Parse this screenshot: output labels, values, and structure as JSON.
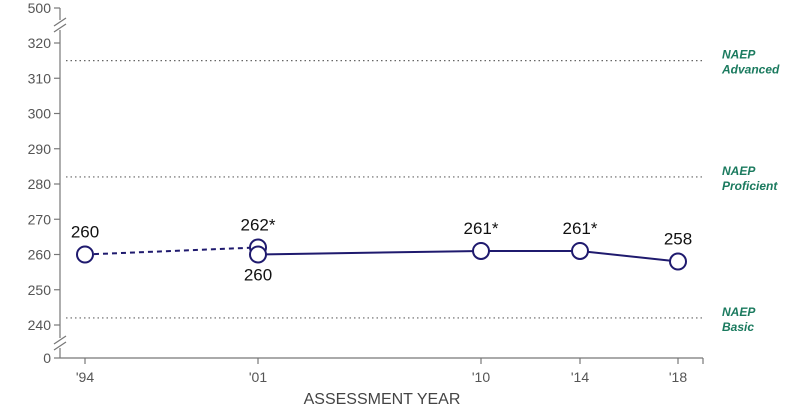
{
  "chart_data": {
    "type": "line",
    "title": "",
    "xlabel": "ASSESSMENT YEAR",
    "ylabel": "",
    "x": [
      "'94",
      "'01",
      "'10",
      "'14",
      "'18"
    ],
    "ylim": [
      240,
      320
    ],
    "y_ticks": [
      240,
      250,
      260,
      270,
      280,
      290,
      300,
      310,
      320
    ],
    "y_break_ticks": {
      "bottom": 0,
      "top": 500
    },
    "series": [
      {
        "name": "",
        "style": "dashed",
        "points": [
          {
            "x": "'94",
            "y": 260,
            "label": "260"
          },
          {
            "x": "'01",
            "y": 262,
            "label": "262*"
          }
        ]
      },
      {
        "name": "",
        "style": "solid",
        "points": [
          {
            "x": "'01",
            "y": 260,
            "label": "260"
          },
          {
            "x": "'10",
            "y": 261,
            "label": "261*"
          },
          {
            "x": "'14",
            "y": 261,
            "label": "261*"
          },
          {
            "x": "'18",
            "y": 258,
            "label": "258"
          }
        ]
      }
    ],
    "reference_lines": [
      {
        "name": "NAEP Advanced",
        "line1": "NAEP",
        "line2": "Advanced",
        "y": 315
      },
      {
        "name": "NAEP Proficient",
        "line1": "NAEP",
        "line2": "Proficient",
        "y": 282
      },
      {
        "name": "NAEP Basic",
        "line1": "NAEP",
        "line2": "Basic",
        "y": 242
      }
    ],
    "colors": {
      "series": "#1f1a6e",
      "reference": "#1a7a5e",
      "axis": "#777777"
    },
    "grid": false
  }
}
